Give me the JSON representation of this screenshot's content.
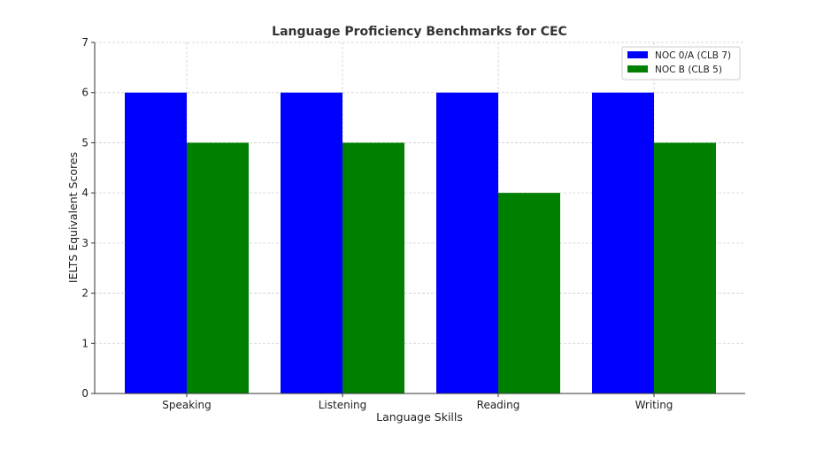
{
  "chart_data": {
    "type": "bar",
    "title": "Language Proficiency Benchmarks for CEC",
    "xlabel": "Language Skills",
    "ylabel": "IELTS Equivalent Scores",
    "categories": [
      "Speaking",
      "Listening",
      "Reading",
      "Writing"
    ],
    "ylim": [
      0,
      7
    ],
    "yticks": [
      0,
      1,
      2,
      3,
      4,
      5,
      6,
      7
    ],
    "grid": true,
    "legend_position": "top-right",
    "series": [
      {
        "name": "NOC 0/A (CLB 7)",
        "color": "#0000ff",
        "values": [
          6,
          6,
          6,
          6
        ]
      },
      {
        "name": "NOC B (CLB 5)",
        "color": "#008000",
        "values": [
          5,
          5,
          4,
          5
        ]
      }
    ]
  }
}
